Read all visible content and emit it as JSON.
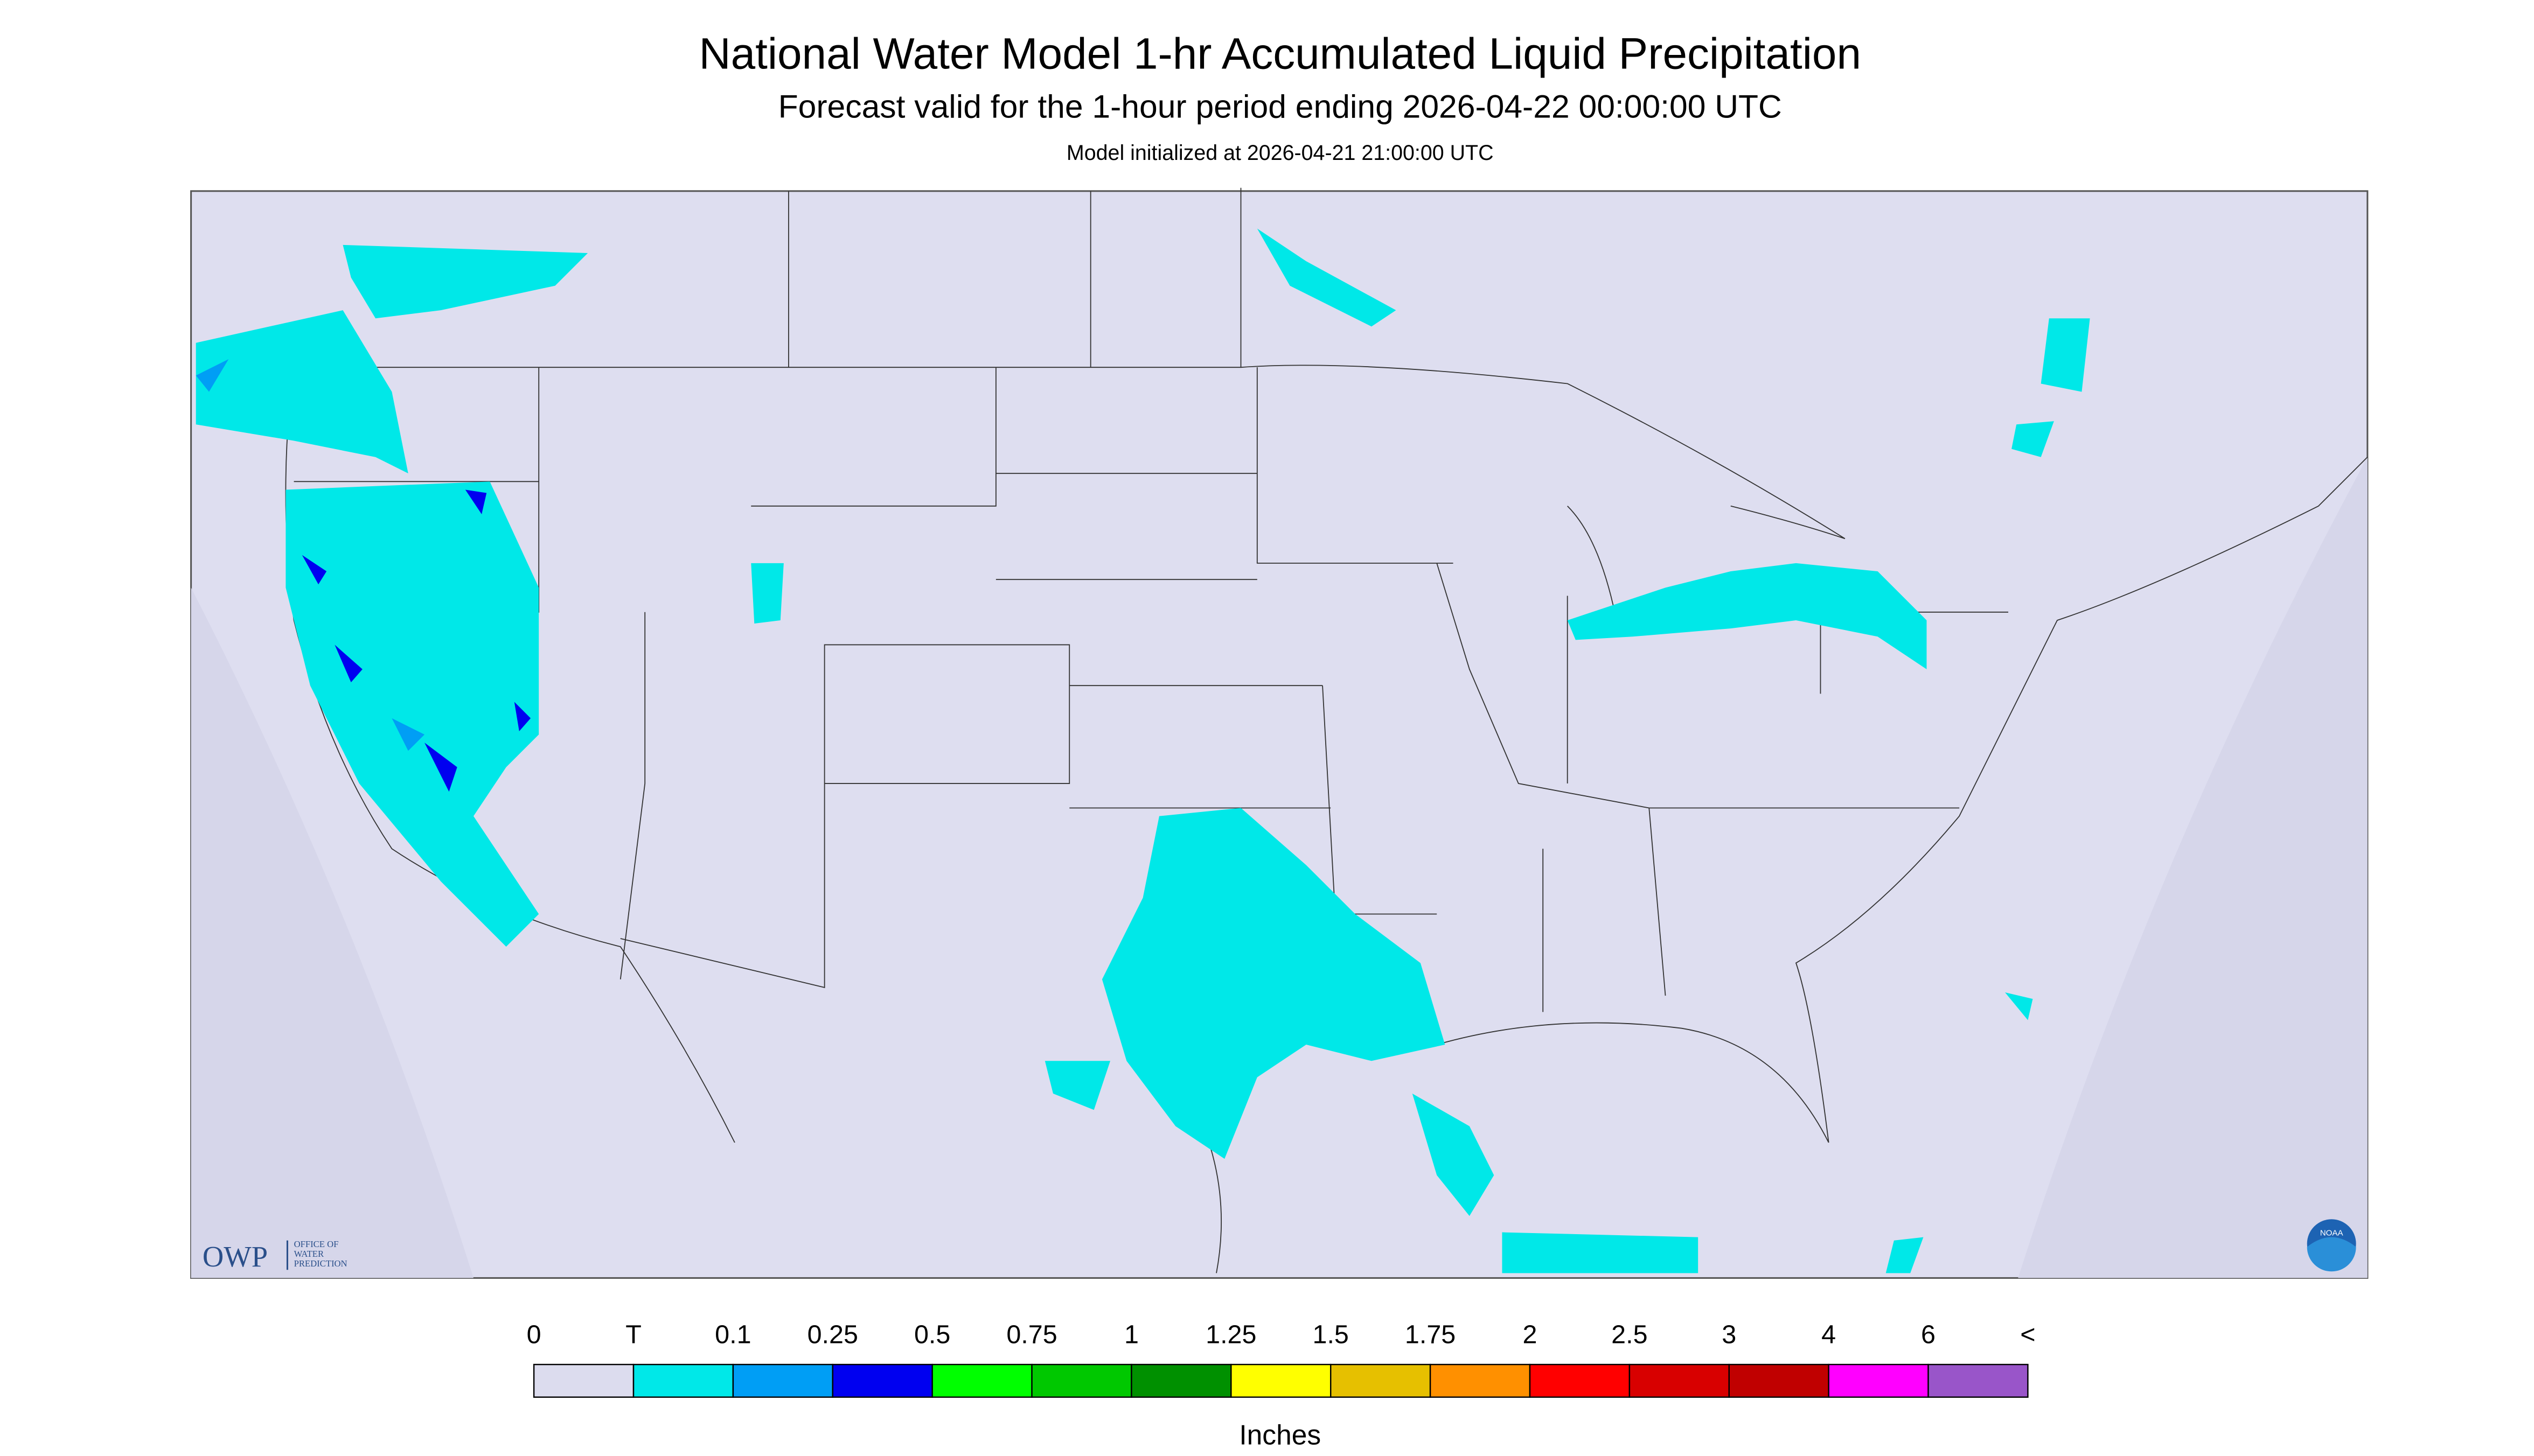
{
  "header": {
    "title": "National Water Model 1-hr Accumulated Liquid Precipitation",
    "subtitle": "Forecast valid for the 1-hour period ending 2026-04-22 00:00:00 UTC",
    "init": "Model initialized at 2026-04-21 21:00:00 UTC"
  },
  "logos": {
    "owp": "OWP",
    "owp_lines": [
      "OFFICE OF",
      "WATER",
      "PREDICTION"
    ],
    "noaa": "NOAA"
  },
  "legend": {
    "labels": [
      "0",
      "T",
      "0.1",
      "0.25",
      "0.5",
      "0.75",
      "1",
      "1.25",
      "1.5",
      "1.75",
      "2",
      "2.5",
      "3",
      "4",
      "6",
      "<"
    ],
    "colors": [
      "#dcdcee",
      "#00e8e8",
      "#009ef5",
      "#0000f0",
      "#00ff00",
      "#00c800",
      "#009000",
      "#ffff00",
      "#e6c000",
      "#ff9000",
      "#ff0000",
      "#d80000",
      "#c00000",
      "#ff00ff",
      "#9955c9"
    ],
    "unit": "Inches"
  }
}
